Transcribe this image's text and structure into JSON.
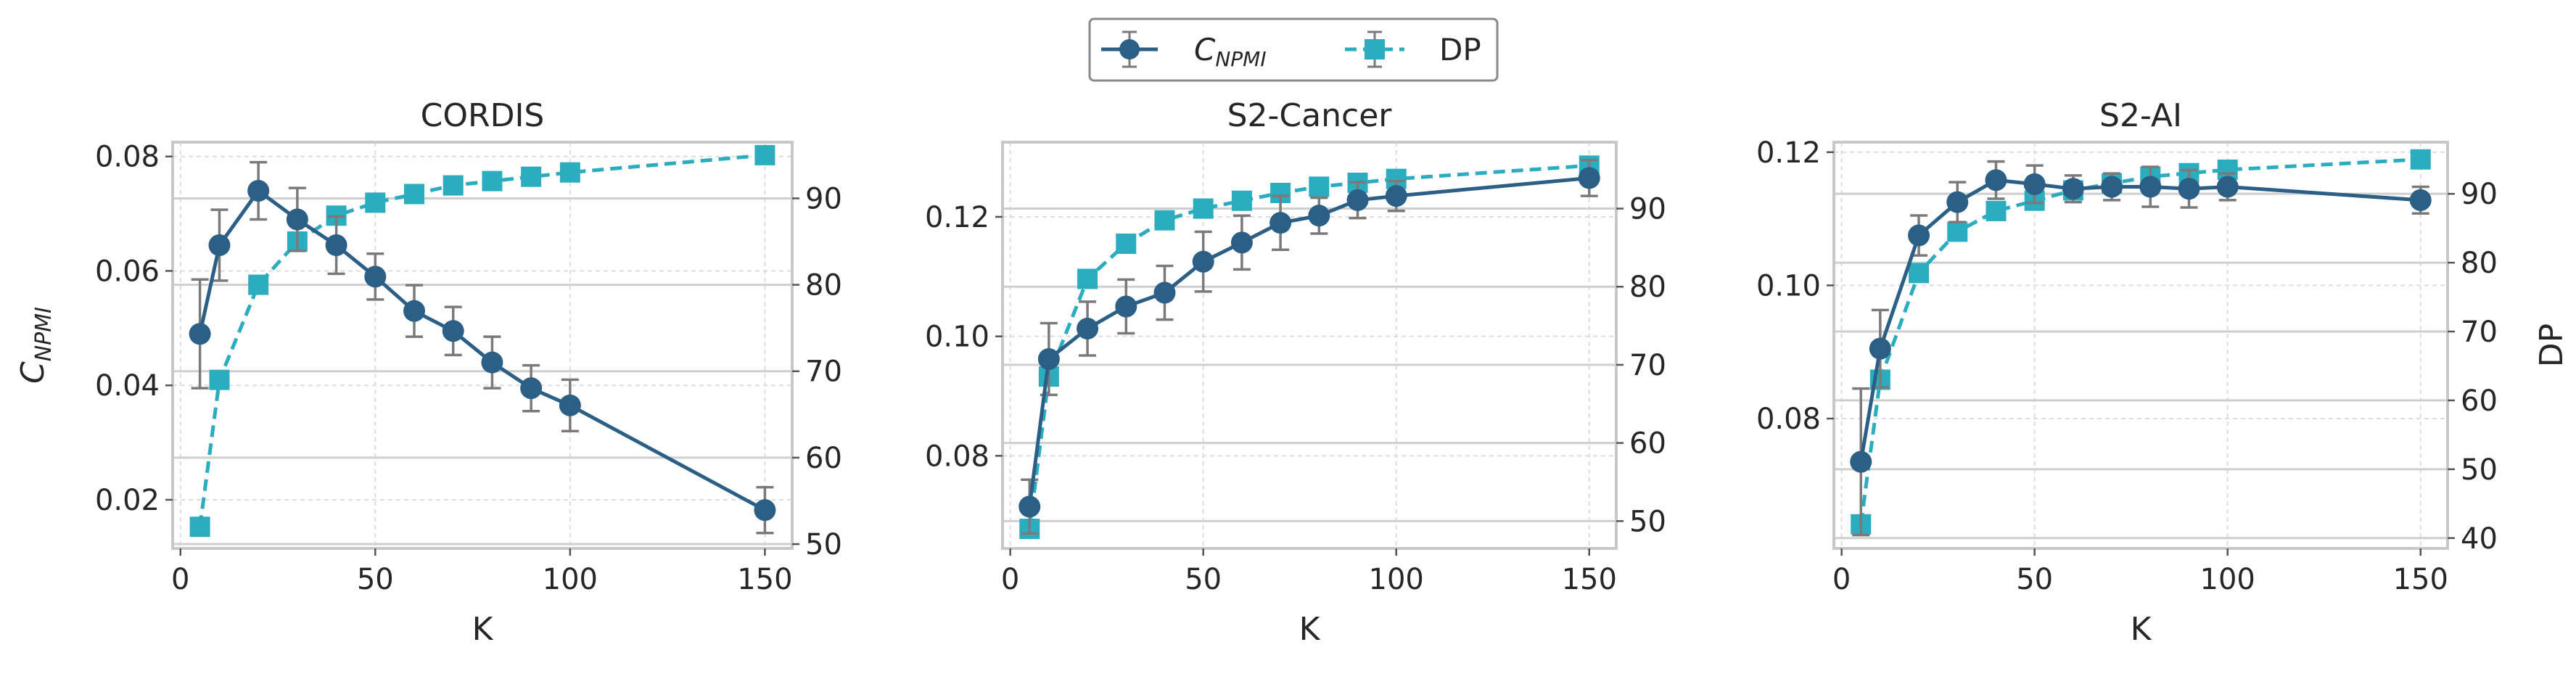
{
  "legend": {
    "items": [
      {
        "label": "C",
        "subscript": "NPMI",
        "marker": "circle",
        "line": "solid",
        "color": "#2c5f85"
      },
      {
        "label": "DP",
        "subscript": "",
        "marker": "square",
        "line": "dashed",
        "color": "#2bacbf"
      }
    ]
  },
  "chart_data": [
    {
      "type": "line",
      "title": "CORDIS",
      "xlabel": "K",
      "ylabel_left_main": "C",
      "ylabel_left_sub": "NPMI",
      "ylabel_right": "",
      "xlim": [
        -2,
        157
      ],
      "xticks": [
        0,
        50,
        100,
        150
      ],
      "ylim_left": [
        0.0115,
        0.0825
      ],
      "yticks_left": [
        0.02,
        0.04,
        0.06,
        0.08
      ],
      "ytick_decimals_left": 2,
      "ylim_right": [
        49.5,
        96.5
      ],
      "yticks_right": [
        50,
        60,
        70,
        80,
        90
      ],
      "x": [
        5,
        10,
        20,
        30,
        40,
        50,
        60,
        70,
        80,
        90,
        100,
        150
      ],
      "series": [
        {
          "name": "C_NPMI",
          "axis": "left",
          "values": [
            0.049,
            0.0645,
            0.074,
            0.069,
            0.0645,
            0.059,
            0.053,
            0.0495,
            0.044,
            0.0395,
            0.0365,
            0.0182
          ],
          "errors": [
            0.0095,
            0.0062,
            0.005,
            0.0055,
            0.005,
            0.004,
            0.0045,
            0.0042,
            0.0045,
            0.004,
            0.0045,
            0.004
          ]
        },
        {
          "name": "DP",
          "axis": "right",
          "values": [
            52,
            69,
            80,
            85,
            88,
            89.5,
            90.5,
            91.5,
            92,
            92.5,
            93,
            95
          ]
        }
      ],
      "grid": true
    },
    {
      "type": "line",
      "title": "S2-Cancer",
      "xlabel": "K",
      "ylabel_left_main": "",
      "ylabel_left_sub": "",
      "ylabel_right": "",
      "xlim": [
        -2,
        157
      ],
      "xticks": [
        0,
        50,
        100,
        150
      ],
      "ylim_left": [
        0.0645,
        0.1325
      ],
      "yticks_left": [
        0.08,
        0.1,
        0.12
      ],
      "ytick_decimals_left": 2,
      "ylim_right": [
        46.5,
        98.5
      ],
      "yticks_right": [
        50,
        60,
        70,
        80,
        90
      ],
      "x": [
        5,
        10,
        20,
        30,
        40,
        50,
        60,
        70,
        80,
        90,
        100,
        150
      ],
      "series": [
        {
          "name": "C_NPMI",
          "axis": "left",
          "values": [
            0.0715,
            0.0962,
            0.1013,
            0.105,
            0.1073,
            0.1125,
            0.1157,
            0.119,
            0.1202,
            0.1228,
            0.1235,
            0.1265
          ],
          "errors": [
            0.0045,
            0.006,
            0.0045,
            0.0045,
            0.0045,
            0.005,
            0.0045,
            0.0045,
            0.003,
            0.003,
            0.0025,
            0.003
          ]
        },
        {
          "name": "DP",
          "axis": "right",
          "values": [
            49,
            68.5,
            81,
            85.5,
            88.5,
            90,
            91,
            92,
            92.8,
            93.3,
            93.8,
            95.5
          ]
        }
      ],
      "grid": true
    },
    {
      "type": "line",
      "title": "S2-AI",
      "xlabel": "K",
      "ylabel_left_main": "",
      "ylabel_left_sub": "",
      "ylabel_right": "DP",
      "xlim": [
        -2,
        157
      ],
      "xticks": [
        0,
        50,
        100,
        150
      ],
      "ylim_left": [
        0.0605,
        0.1215
      ],
      "yticks_left": [
        0.08,
        0.1,
        0.12
      ],
      "ytick_decimals_left": 2,
      "ylim_right": [
        38.5,
        97.5
      ],
      "yticks_right": [
        40,
        50,
        60,
        70,
        80,
        90
      ],
      "x": [
        5,
        10,
        20,
        30,
        40,
        50,
        60,
        70,
        80,
        90,
        100,
        150
      ],
      "series": [
        {
          "name": "C_NPMI",
          "axis": "left",
          "values": [
            0.0735,
            0.0905,
            0.1075,
            0.1125,
            0.1158,
            0.1152,
            0.1145,
            0.1148,
            0.1148,
            0.1145,
            0.1148,
            0.1128
          ],
          "errors": [
            0.011,
            0.0058,
            0.003,
            0.003,
            0.0028,
            0.0028,
            0.002,
            0.002,
            0.003,
            0.0028,
            0.002,
            0.002
          ]
        },
        {
          "name": "DP",
          "axis": "right",
          "values": [
            42,
            63,
            78.5,
            84.5,
            87.5,
            89,
            90.5,
            91.5,
            92.5,
            93,
            93.5,
            95
          ]
        }
      ],
      "grid": true
    }
  ]
}
